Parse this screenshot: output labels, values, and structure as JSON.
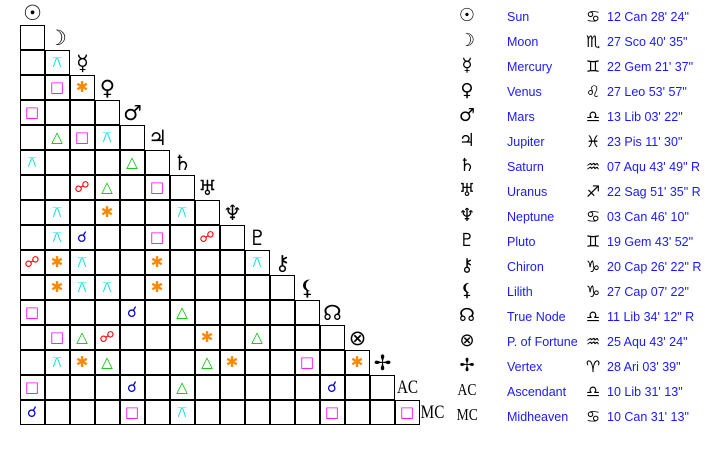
{
  "aspect_styles": {
    "conjunction": {
      "glyph": "☌",
      "color": "#0000cc"
    },
    "opposition": {
      "glyph": "☍",
      "color": "#ff0000"
    },
    "square": {
      "glyph": "□",
      "color": "#ff00ff"
    },
    "trine": {
      "glyph": "△",
      "color": "#00c000"
    },
    "sextile": {
      "glyph": "✱",
      "color": "#ff8800"
    },
    "quincunx": {
      "glyph": "⚻",
      "color": "#00e0e0"
    }
  },
  "bodies": [
    {
      "name": "Sun",
      "glyph": "☉",
      "sign_glyph": "♋",
      "position": "12 Can 28' 24\""
    },
    {
      "name": "Moon",
      "glyph": "☽",
      "sign_glyph": "♏",
      "position": "27 Sco 40' 35\""
    },
    {
      "name": "Mercury",
      "glyph": "☿",
      "sign_glyph": "♊",
      "position": "22 Gem 21' 37\""
    },
    {
      "name": "Venus",
      "glyph": "♀",
      "sign_glyph": "♌",
      "position": "27 Leo 53' 57\""
    },
    {
      "name": "Mars",
      "glyph": "♂",
      "sign_glyph": "♎",
      "position": "13 Lib 03' 22\""
    },
    {
      "name": "Jupiter",
      "glyph": "♃",
      "sign_glyph": "♓",
      "position": "23 Pis 11' 30\""
    },
    {
      "name": "Saturn",
      "glyph": "♄",
      "sign_glyph": "♒",
      "position": "07 Aqu 43' 49\" R"
    },
    {
      "name": "Uranus",
      "glyph": "♅",
      "sign_glyph": "♐",
      "position": "22 Sag 51' 35\" R"
    },
    {
      "name": "Neptune",
      "glyph": "♆",
      "sign_glyph": "♋",
      "position": "03 Can 46' 10\""
    },
    {
      "name": "Pluto",
      "glyph": "♇",
      "sign_glyph": "♊",
      "position": "19 Gem 43' 52\""
    },
    {
      "name": "Chiron",
      "glyph": "⚷",
      "sign_glyph": "♑",
      "position": "20 Cap 26' 22\" R"
    },
    {
      "name": "Lilith",
      "glyph": "⚸",
      "sign_glyph": "♑",
      "position": "27 Cap 07' 22\""
    },
    {
      "name": "True Node",
      "glyph": "☊",
      "sign_glyph": "♎",
      "position": "11 Lib 34' 12\" R"
    },
    {
      "name": "P. of Fortune",
      "glyph": "⊗",
      "sign_glyph": "♒",
      "position": "25 Aqu 43' 24\""
    },
    {
      "name": "Vertex",
      "glyph": "✢",
      "sign_glyph": "♈",
      "position": "28 Ari 03' 39\""
    },
    {
      "name": "Ascendant",
      "glyph": "AC",
      "sign_glyph": "♎",
      "position": "10 Lib 31' 13\""
    },
    {
      "name": "Midheaven",
      "glyph": "MC",
      "sign_glyph": "♋",
      "position": "10 Can 31' 13\""
    }
  ],
  "aspect_grid": [
    [],
    [
      "",
      ""
    ],
    [
      "",
      "quincunx"
    ],
    [
      "",
      "square",
      "sextile"
    ],
    [
      "square",
      "",
      "",
      ""
    ],
    [
      "",
      "trine",
      "square",
      "quincunx",
      ""
    ],
    [
      "quincunx",
      "",
      "",
      "",
      "trine",
      ""
    ],
    [
      "",
      "",
      "opposition",
      "trine",
      "",
      "square",
      ""
    ],
    [
      "",
      "quincunx",
      "",
      "sextile",
      "",
      "",
      "quincunx",
      ""
    ],
    [
      "",
      "quincunx",
      "conjunction",
      "",
      "",
      "square",
      "",
      "opposition",
      ""
    ],
    [
      "opposition",
      "sextile",
      "quincunx",
      "",
      "",
      "sextile",
      "",
      "",
      "",
      "quincunx"
    ],
    [
      "",
      "sextile",
      "quincunx",
      "quincunx",
      "",
      "sextile",
      "",
      "",
      "",
      "",
      ""
    ],
    [
      "square",
      "",
      "",
      "",
      "conjunction",
      "",
      "trine",
      "",
      "",
      "",
      "",
      ""
    ],
    [
      "",
      "square",
      "trine",
      "opposition",
      "",
      "",
      "",
      "sextile",
      "",
      "trine",
      "",
      "",
      ""
    ],
    [
      "",
      "quincunx",
      "sextile",
      "trine",
      "",
      "",
      "",
      "trine",
      "sextile",
      "",
      "",
      "square",
      "",
      "sextile"
    ],
    [
      "square",
      "",
      "",
      "",
      "conjunction",
      "",
      "trine",
      "",
      "",
      "",
      "",
      "",
      "conjunction",
      "",
      ""
    ],
    [
      "conjunction",
      "",
      "",
      "",
      "square",
      "",
      "quincunx",
      "",
      "",
      "",
      "",
      "",
      "square",
      "",
      "",
      "square"
    ]
  ]
}
